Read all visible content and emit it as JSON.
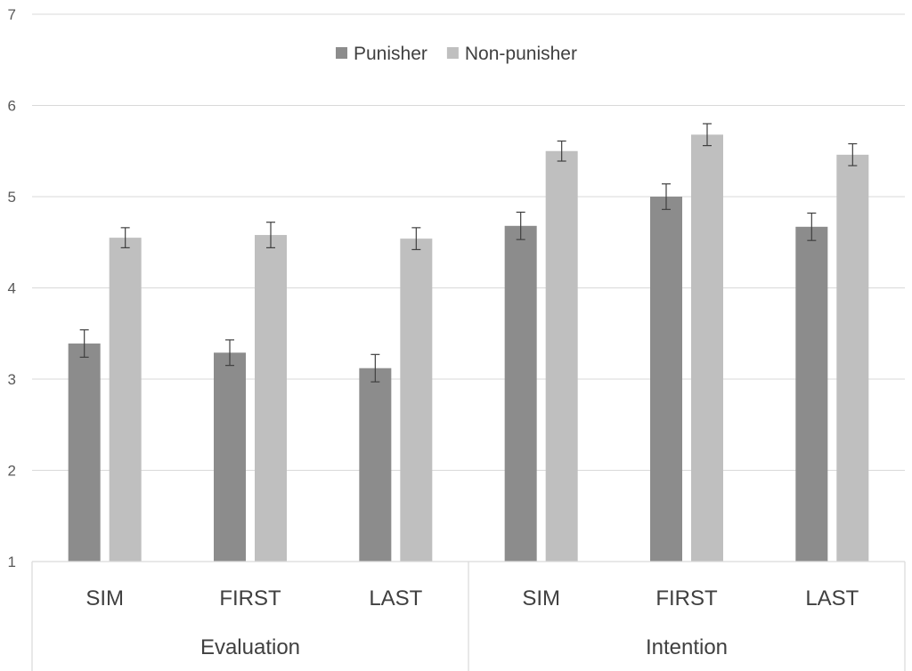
{
  "chart_data": {
    "type": "bar",
    "title": "",
    "xlabel": "",
    "ylabel": "",
    "ylim": [
      1,
      7
    ],
    "yticks": [
      1,
      2,
      3,
      4,
      5,
      6,
      7
    ],
    "grid": true,
    "legend_position": "top-center",
    "groups": [
      {
        "label": "Evaluation",
        "categories": [
          "SIM",
          "FIRST",
          "LAST"
        ]
      },
      {
        "label": "Intention",
        "categories": [
          "SIM",
          "FIRST",
          "LAST"
        ]
      }
    ],
    "categories": [
      "SIM",
      "FIRST",
      "LAST",
      "SIM",
      "FIRST",
      "LAST"
    ],
    "series": [
      {
        "name": "Punisher",
        "color": "#8c8c8c",
        "values": [
          3.39,
          3.29,
          3.12,
          4.68,
          5.0,
          4.67
        ],
        "errors": [
          0.15,
          0.14,
          0.15,
          0.15,
          0.14,
          0.15
        ]
      },
      {
        "name": "Non-punisher",
        "color": "#bfbfbf",
        "values": [
          4.55,
          4.58,
          4.54,
          5.5,
          5.68,
          5.46
        ],
        "errors": [
          0.11,
          0.14,
          0.12,
          0.11,
          0.12,
          0.12
        ]
      }
    ]
  }
}
